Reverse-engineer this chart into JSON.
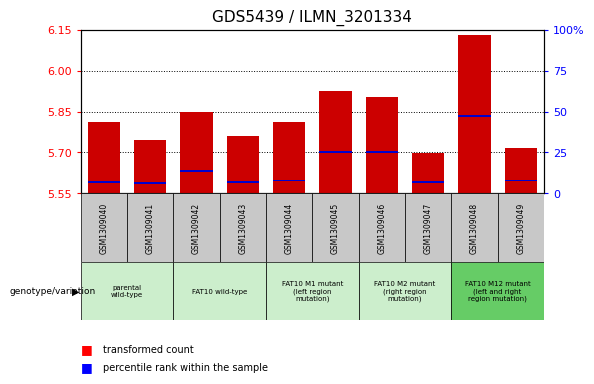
{
  "title": "GDS5439 / ILMN_3201334",
  "samples": [
    "GSM1309040",
    "GSM1309041",
    "GSM1309042",
    "GSM1309043",
    "GSM1309044",
    "GSM1309045",
    "GSM1309046",
    "GSM1309047",
    "GSM1309048",
    "GSM1309049"
  ],
  "bar_values": [
    5.81,
    5.745,
    5.848,
    5.762,
    5.812,
    5.925,
    5.905,
    5.698,
    6.13,
    5.718
  ],
  "blue_values": [
    5.592,
    5.588,
    5.632,
    5.592,
    5.597,
    5.703,
    5.701,
    5.592,
    5.833,
    5.597
  ],
  "ylim_left": [
    5.55,
    6.15
  ],
  "ylim_right": [
    0,
    100
  ],
  "yticks_left": [
    5.55,
    5.7,
    5.85,
    6.0,
    6.15
  ],
  "yticks_right": [
    0,
    25,
    50,
    75,
    100
  ],
  "bar_color": "#CC0000",
  "blue_color": "#0000CC",
  "bar_width": 0.7,
  "groups": [
    {
      "cols": [
        0,
        1
      ],
      "label": "parental\nwild-type",
      "color": "#cceecc"
    },
    {
      "cols": [
        2,
        3
      ],
      "label": "FAT10 wild-type",
      "color": "#cceecc"
    },
    {
      "cols": [
        4,
        5
      ],
      "label": "FAT10 M1 mutant\n(left region\nmutation)",
      "color": "#cceecc"
    },
    {
      "cols": [
        6,
        7
      ],
      "label": "FAT10 M2 mutant\n(right region\nmutation)",
      "color": "#cceecc"
    },
    {
      "cols": [
        8,
        9
      ],
      "label": "FAT10 M12 mutant\n(left and right\nregion mutation)",
      "color": "#66cc66"
    }
  ],
  "sample_bg": "#c8c8c8",
  "plot_bg": "white",
  "right_tick_labels": [
    "0",
    "25",
    "50",
    "75",
    "100%"
  ]
}
